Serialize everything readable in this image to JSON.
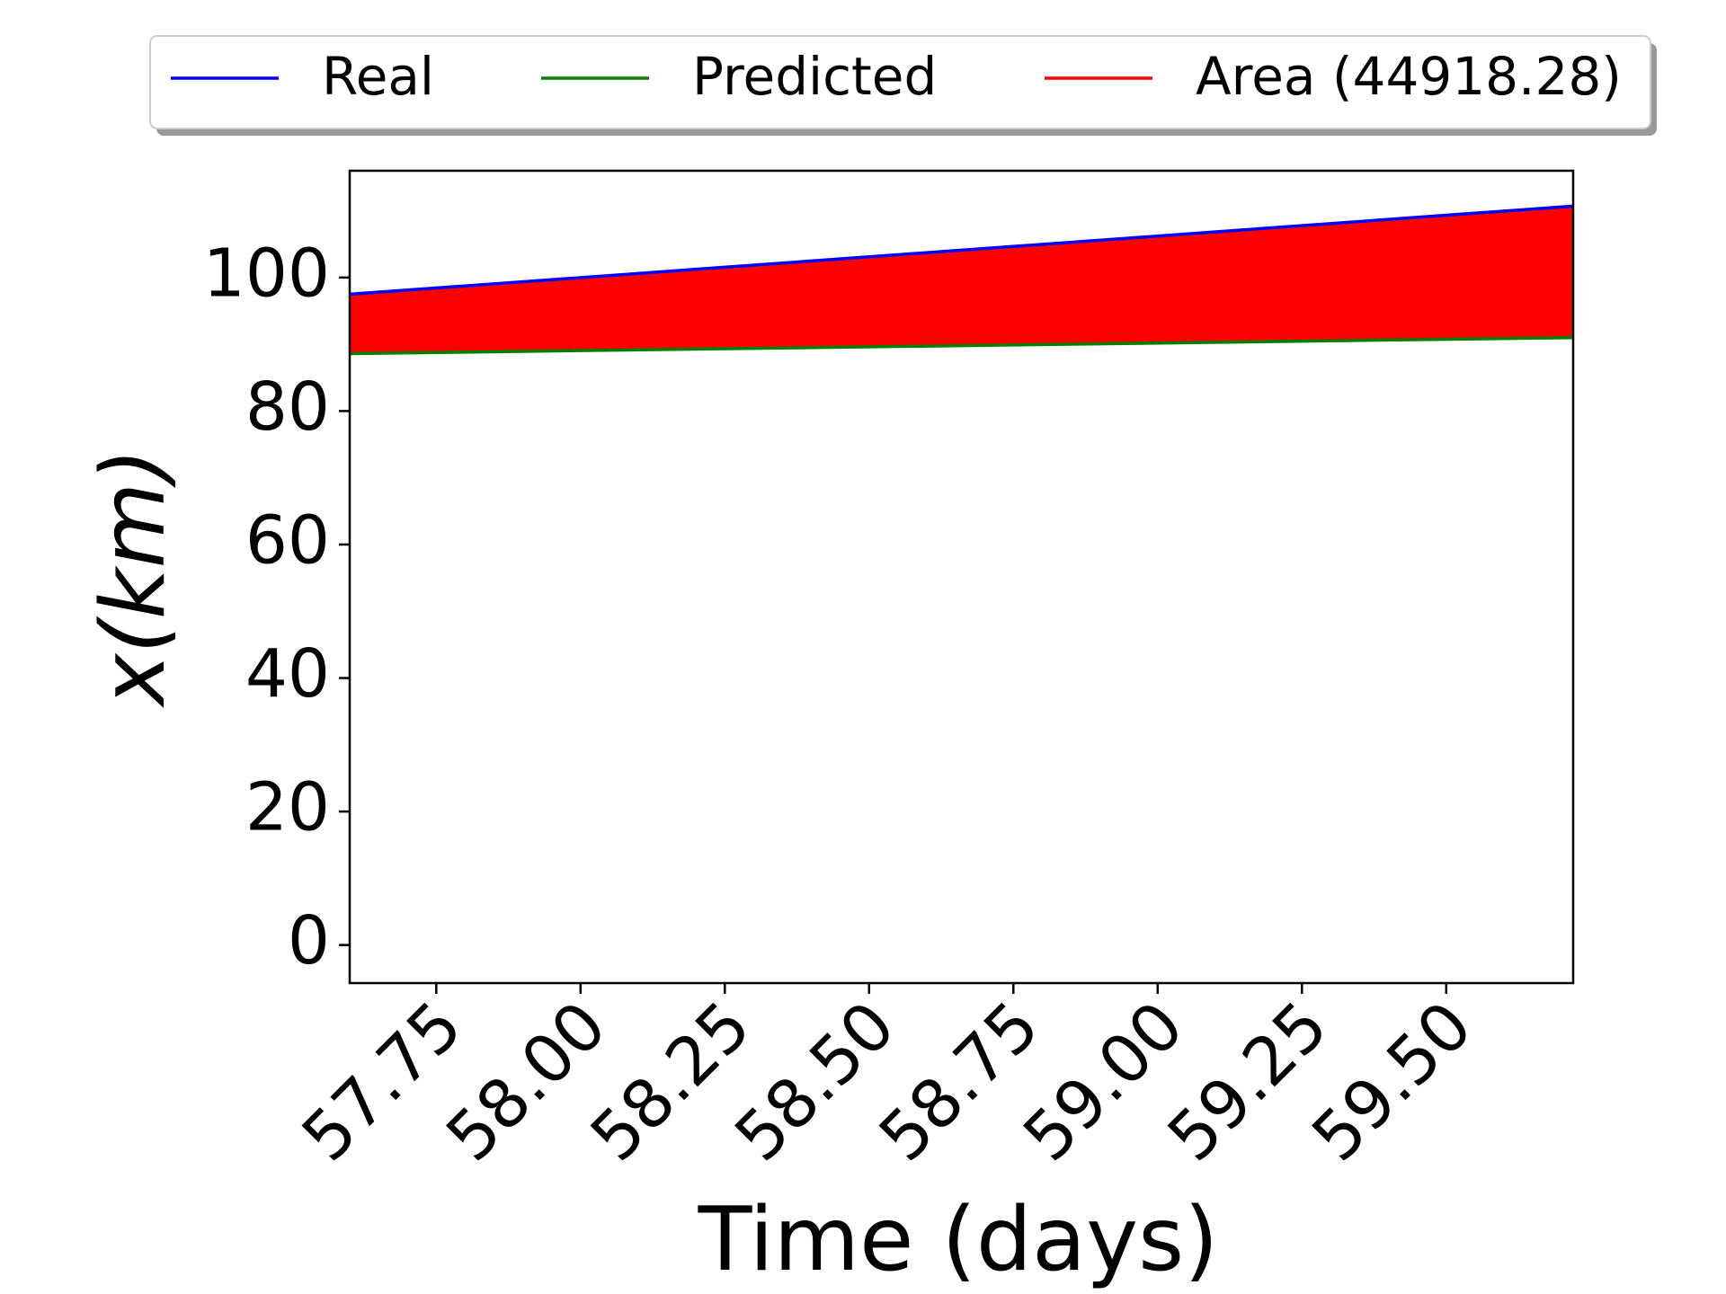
{
  "chart_data": {
    "type": "line",
    "xlabel": "Time (days)",
    "ylabel": "x(km)",
    "x": [
      57.6,
      59.72
    ],
    "series": [
      {
        "name": "Real",
        "color": "#0000ff",
        "values": [
          97.5,
          110.7
        ]
      },
      {
        "name": "Predicted",
        "color": "#008000",
        "values": [
          88.6,
          91.0
        ]
      }
    ],
    "fill": {
      "name": "Area (44918.28)",
      "color": "#ff0000",
      "between": [
        0,
        1
      ]
    },
    "xlim": [
      57.6,
      59.72
    ],
    "xticks": [
      57.75,
      {
        "value": 58,
        "label": "58.00"
      },
      58.25,
      {
        "value": 58.5,
        "label": "58.50"
      },
      58.75,
      {
        "value": 59,
        "label": "59.00"
      },
      59.25,
      {
        "value": 59.5,
        "label": "59.50"
      }
    ],
    "ylim": [
      -5.7,
      116
    ],
    "yticks": [
      0,
      20,
      40,
      60,
      80,
      100
    ],
    "legend": "top"
  }
}
